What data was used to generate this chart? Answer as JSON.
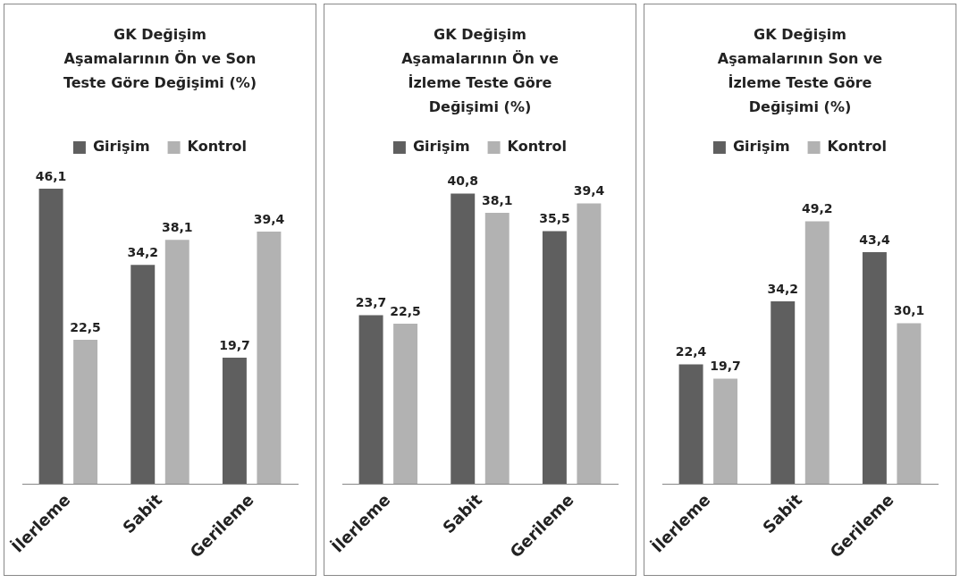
{
  "chart_data": [
    {
      "type": "bar",
      "title": "GK Değişim Aşamalarının Ön ve Son Teste Göre Değişimi (%)",
      "categories": [
        "İlerleme",
        "Sabit",
        "Gerileme"
      ],
      "series": [
        {
          "name": "Girişim",
          "color": "#5f5f5f",
          "values": [
            46.1,
            34.2,
            19.7
          ],
          "value_labels": [
            "46,1",
            "34,2",
            "19,7"
          ]
        },
        {
          "name": "Kontrol",
          "color": "#b2b2b2",
          "values": [
            22.5,
            38.1,
            39.4
          ],
          "value_labels": [
            "22,5",
            "38,1",
            "39,4"
          ]
        }
      ],
      "legend": "top",
      "grid": false,
      "tick_labels": "x"
    },
    {
      "type": "bar",
      "title": "GK Değişim Aşamalarının Ön ve İzleme Teste Göre Değişimi (%)",
      "categories": [
        "İlerleme",
        "Sabit",
        "Gerileme"
      ],
      "series": [
        {
          "name": "Girişim",
          "color": "#5f5f5f",
          "values": [
            23.7,
            40.8,
            35.5
          ],
          "value_labels": [
            "23,7",
            "40,8",
            "35,5"
          ]
        },
        {
          "name": "Kontrol",
          "color": "#b2b2b2",
          "values": [
            22.5,
            38.1,
            39.4
          ],
          "value_labels": [
            "22,5",
            "38,1",
            "39,4"
          ]
        }
      ],
      "legend": "top",
      "grid": false,
      "tick_labels": "x"
    },
    {
      "type": "bar",
      "title": "GK Değişim Aşamalarının Son ve İzleme Teste Göre Değişimi (%)",
      "categories": [
        "İlerleme",
        "Sabit",
        "Gerileme"
      ],
      "series": [
        {
          "name": "Girişim",
          "color": "#5f5f5f",
          "values": [
            22.4,
            34.2,
            43.4
          ],
          "value_labels": [
            "22,4",
            "34,2",
            "43,4"
          ]
        },
        {
          "name": "Kontrol",
          "color": "#b2b2b2",
          "values": [
            19.7,
            49.2,
            30.1
          ],
          "value_labels": [
            "19,7",
            "49,2",
            "30,1"
          ]
        }
      ],
      "legend": "top",
      "grid": false,
      "tick_labels": "x"
    }
  ]
}
